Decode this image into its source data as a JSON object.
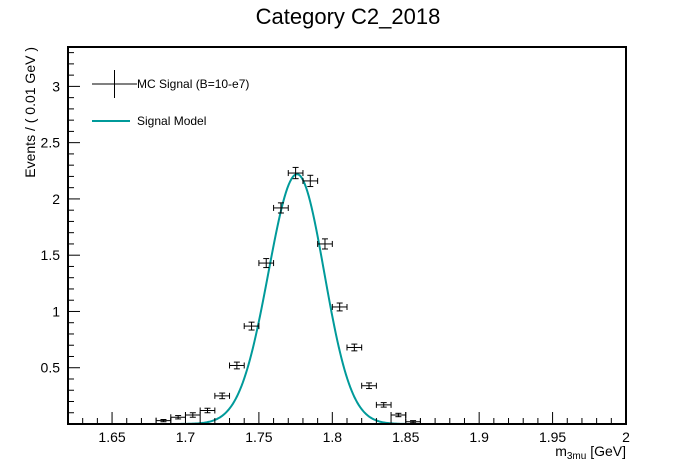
{
  "chart_data": {
    "type": "scatter",
    "title": "Category C2_2018",
    "xlabel_main": "m",
    "xlabel_sub": "3mu",
    "xlabel_unit": " [GeV]",
    "ylabel": "Events / ( 0.01 GeV )",
    "xlim": [
      1.62,
      2.0
    ],
    "ylim": [
      0,
      3.35
    ],
    "x_ticks": [
      "1.65",
      "1.7",
      "1.75",
      "1.8",
      "1.85",
      "1.9",
      "1.95",
      "2"
    ],
    "x_tick_values": [
      1.65,
      1.7,
      1.75,
      1.8,
      1.85,
      1.9,
      1.95,
      2.0
    ],
    "y_ticks": [
      "0.5",
      "1",
      "1.5",
      "2",
      "2.5",
      "3"
    ],
    "y_tick_values": [
      0.5,
      1,
      1.5,
      2,
      2.5,
      3
    ],
    "grid": false,
    "legend_position": "top-left",
    "series": [
      {
        "name": "MC Signal (B=10-e7)",
        "kind": "points-with-errors",
        "color": "#000000",
        "bin_half_width": 0.005,
        "points": [
          {
            "x": 1.685,
            "y": 0.03,
            "err": 0.01
          },
          {
            "x": 1.695,
            "y": 0.06,
            "err": 0.015
          },
          {
            "x": 1.705,
            "y": 0.08,
            "err": 0.02
          },
          {
            "x": 1.715,
            "y": 0.12,
            "err": 0.02
          },
          {
            "x": 1.725,
            "y": 0.25,
            "err": 0.025
          },
          {
            "x": 1.735,
            "y": 0.52,
            "err": 0.03
          },
          {
            "x": 1.745,
            "y": 0.87,
            "err": 0.035
          },
          {
            "x": 1.755,
            "y": 1.43,
            "err": 0.04
          },
          {
            "x": 1.765,
            "y": 1.92,
            "err": 0.045
          },
          {
            "x": 1.775,
            "y": 2.23,
            "err": 0.05
          },
          {
            "x": 1.785,
            "y": 2.16,
            "err": 0.05
          },
          {
            "x": 1.795,
            "y": 1.6,
            "err": 0.045
          },
          {
            "x": 1.805,
            "y": 1.04,
            "err": 0.035
          },
          {
            "x": 1.815,
            "y": 0.68,
            "err": 0.03
          },
          {
            "x": 1.825,
            "y": 0.34,
            "err": 0.025
          },
          {
            "x": 1.835,
            "y": 0.17,
            "err": 0.02
          },
          {
            "x": 1.845,
            "y": 0.08,
            "err": 0.015
          },
          {
            "x": 1.855,
            "y": 0.02,
            "err": 0.01
          }
        ]
      },
      {
        "name": "Signal Model",
        "kind": "curve",
        "color": "#009a9a",
        "mean": 1.776,
        "sigma_left": 0.0195,
        "sigma_right": 0.0185,
        "peak": 2.22,
        "x_range": [
          1.665,
          1.86
        ]
      }
    ]
  }
}
